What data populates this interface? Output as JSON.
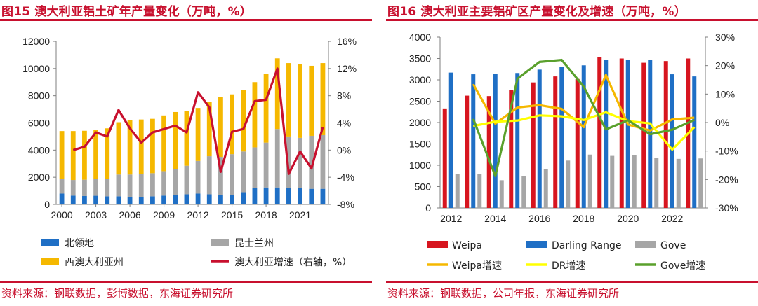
{
  "fig15": {
    "title": "图15 澳大利亚铝土矿年产量变化（万吨，%）",
    "source": "资料来源：钢联数据，彭博数据，东海证券研究所",
    "chart_data": {
      "type": "bar",
      "stacked": true,
      "categories": [
        "2000",
        "2001",
        "2002",
        "2003",
        "2004",
        "2005",
        "2006",
        "2007",
        "2008",
        "2009",
        "2010",
        "2011",
        "2012",
        "2013",
        "2014",
        "2015",
        "2016",
        "2017",
        "2018",
        "2019",
        "2020",
        "2021",
        "2022",
        "2023"
      ],
      "x_tick_labels": [
        "2000",
        "2003",
        "2006",
        "2009",
        "2012",
        "2015",
        "2018",
        "2021"
      ],
      "series": [
        {
          "name": "北领地",
          "color": "#1f6fc5",
          "axis": "left",
          "values": [
            800,
            650,
            620,
            640,
            600,
            600,
            550,
            550,
            600,
            650,
            700,
            750,
            800,
            750,
            700,
            700,
            900,
            1200,
            1250,
            1250,
            1200,
            1200,
            1150,
            1150
          ]
        },
        {
          "name": "昆士兰州",
          "color": "#a6a6a6",
          "axis": "left",
          "values": [
            1100,
            1150,
            1200,
            1250,
            1300,
            1600,
            1650,
            1700,
            1700,
            1800,
            1900,
            2100,
            2400,
            2800,
            2800,
            3000,
            3000,
            3000,
            3300,
            4300,
            3800,
            3700,
            3900,
            3950
          ]
        },
        {
          "name": "西澳大利亚州",
          "color": "#f5b800",
          "axis": "left",
          "values": [
            3500,
            3600,
            3600,
            3600,
            3700,
            3850,
            4000,
            4000,
            4000,
            4100,
            4200,
            4000,
            3900,
            4000,
            4400,
            4400,
            4500,
            4800,
            5050,
            5200,
            5400,
            5400,
            5150,
            5300
          ]
        },
        {
          "name": "澳大利亚增速（右轴，%）",
          "color": "#c8102e",
          "axis": "right",
          "type": "line",
          "values": [
            null,
            0.0,
            0.5,
            2.6,
            2.0,
            5.9,
            3.2,
            1.1,
            2.6,
            3.1,
            3.6,
            2.6,
            8.5,
            6.3,
            -3.2,
            2.7,
            3.1,
            7.2,
            7.4,
            12.0,
            -3.5,
            -0.2,
            -2.7,
            3.4
          ]
        }
      ],
      "yleft": {
        "min": 0,
        "max": 12000,
        "step": 2000,
        "ticks": [
          "0",
          "2000",
          "4000",
          "6000",
          "8000",
          "10000",
          "12000"
        ]
      },
      "yright": {
        "min": -8,
        "max": 16,
        "step": 4,
        "ticks": [
          "-8%",
          "-4%",
          "0%",
          "4%",
          "8%",
          "12%",
          "16%"
        ]
      }
    }
  },
  "fig16": {
    "title": "图16 澳大利亚主要铝矿区产量变化及增速（万吨，%）",
    "source": "资料来源：钢联数据，公司年报，东海证券研究所",
    "chart_data": {
      "type": "bar",
      "categories": [
        "2012",
        "2013",
        "2014",
        "2015",
        "2016",
        "2017",
        "2018",
        "2019",
        "2020",
        "2021",
        "2022",
        "2023"
      ],
      "x_tick_labels": [
        "2012",
        "2014",
        "2016",
        "2018",
        "2020",
        "2022"
      ],
      "series": [
        {
          "name": "Weipa",
          "color": "#d7151f",
          "axis": "left",
          "values": [
            2330,
            2630,
            2620,
            2760,
            2940,
            3080,
            3020,
            3530,
            3500,
            3400,
            3440,
            3500
          ]
        },
        {
          "name": "Darling Range",
          "color": "#1f6fc5",
          "axis": "left",
          "values": [
            3170,
            3130,
            3140,
            3160,
            3240,
            3310,
            3340,
            3460,
            3470,
            3460,
            3130,
            3080
          ]
        },
        {
          "name": "Gove",
          "color": "#a6a6a6",
          "axis": "left",
          "values": [
            790,
            800,
            650,
            750,
            910,
            1110,
            1250,
            1220,
            1230,
            1180,
            1150,
            1160
          ]
        },
        {
          "name": "Weipa增速",
          "color": "#f5b800",
          "axis": "right",
          "type": "line",
          "values": [
            null,
            13.5,
            -0.4,
            5.3,
            6.1,
            4.8,
            -1.6,
            16.7,
            -0.7,
            -2.8,
            1.1,
            1.7
          ]
        },
        {
          "name": "DR增速",
          "color": "#ffff00",
          "axis": "right",
          "type": "line",
          "values": [
            null,
            -1.2,
            0.3,
            0.7,
            2.5,
            2.2,
            0.9,
            3.6,
            0.5,
            -0.3,
            -9.5,
            -1.6
          ]
        },
        {
          "name": "Gove增速",
          "color": "#5aa02c",
          "axis": "right",
          "type": "line",
          "values": [
            null,
            1.3,
            -18.8,
            15.4,
            21.3,
            22.0,
            12.6,
            -2.4,
            0.8,
            -4.1,
            -2.5,
            0.9
          ]
        }
      ],
      "yleft": {
        "min": 0,
        "max": 4000,
        "step": 500,
        "ticks": [
          "0",
          "500",
          "1000",
          "1500",
          "2000",
          "2500",
          "3000",
          "3500",
          "4000"
        ]
      },
      "yright": {
        "min": -30,
        "max": 30,
        "step": 10,
        "ticks": [
          "-30%",
          "-20%",
          "-10%",
          "0%",
          "10%",
          "20%",
          "30%"
        ]
      }
    }
  }
}
